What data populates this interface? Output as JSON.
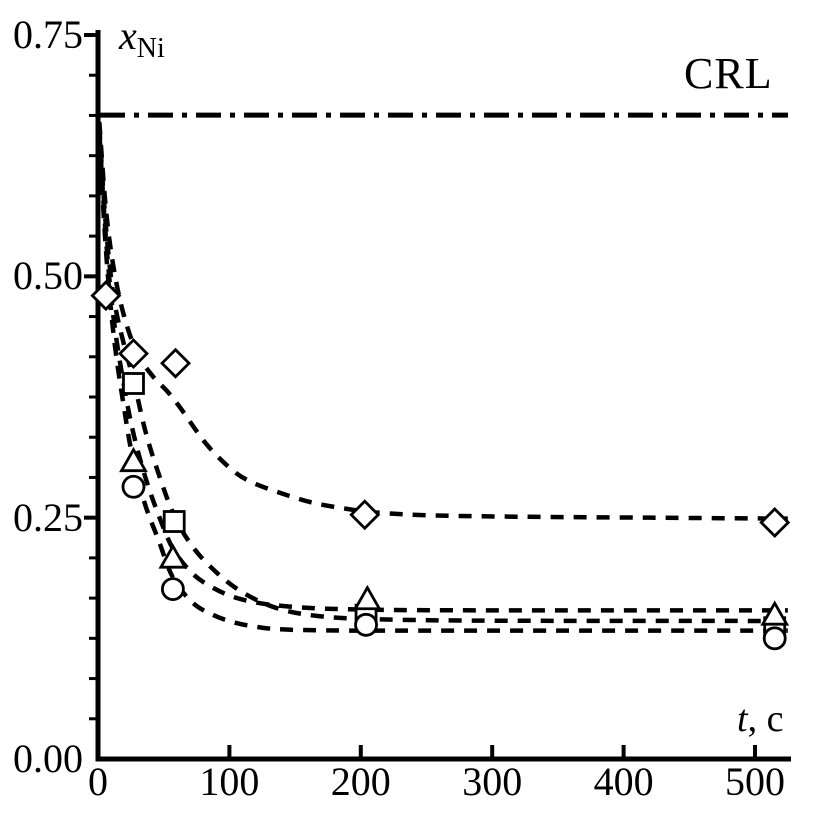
{
  "figure": {
    "background": "#ffffff",
    "ink_color": "#000000"
  },
  "chart_data": {
    "type": "line",
    "title": "",
    "xlabel": {
      "main": "t",
      "unit": ", c"
    },
    "ylabel": {
      "base": "x",
      "sub": "Ni"
    },
    "xlim": [
      0,
      500
    ],
    "ylim": [
      0,
      0.75
    ],
    "x_ticks": [
      0,
      100,
      200,
      300,
      400,
      500
    ],
    "x_tick_labels": [
      "0",
      "100",
      "200",
      "300",
      "400",
      "500"
    ],
    "y_ticks": [
      0,
      0.25,
      0.5,
      0.75
    ],
    "y_tick_labels": [
      "0.00",
      "0.25",
      "0.50",
      "0.75"
    ],
    "y_minor_divisions_per_major": 6,
    "grid": false,
    "legend_position": "none",
    "annotation": {
      "label": "CRL",
      "value": 0.667,
      "line_style": "dash-dot",
      "orientation": "horizontal"
    },
    "series": [
      {
        "name": "diamond-series",
        "marker": "diamond",
        "line_style": "dashed",
        "plateau": 0.25,
        "points": [
          [
            6,
            0.48
          ],
          [
            27,
            0.42
          ],
          [
            59,
            0.41
          ],
          [
            203,
            0.253
          ],
          [
            515,
            0.245
          ]
        ],
        "curve": [
          [
            1,
            0.66
          ],
          [
            6,
            0.57
          ],
          [
            12,
            0.508
          ],
          [
            20,
            0.458
          ],
          [
            30,
            0.42
          ],
          [
            42,
            0.396
          ],
          [
            52,
            0.382
          ],
          [
            62,
            0.365
          ],
          [
            82,
            0.327
          ],
          [
            100,
            0.302
          ],
          [
            115,
            0.288
          ],
          [
            140,
            0.275
          ],
          [
            165,
            0.265
          ],
          [
            190,
            0.259
          ],
          [
            210,
            0.2555
          ],
          [
            250,
            0.2525
          ],
          [
            320,
            0.251
          ],
          [
            420,
            0.25
          ],
          [
            525,
            0.249
          ]
        ]
      },
      {
        "name": "square-series",
        "marker": "square",
        "line_style": "dashed",
        "plateau": 0.143,
        "points": [
          [
            27,
            0.389
          ],
          [
            58,
            0.246
          ],
          [
            204,
            0.149
          ],
          [
            515,
            0.136
          ]
        ],
        "curve": [
          [
            1,
            0.655
          ],
          [
            6,
            0.552
          ],
          [
            12,
            0.478
          ],
          [
            20,
            0.428
          ],
          [
            27,
            0.393
          ],
          [
            36,
            0.34
          ],
          [
            46,
            0.296
          ],
          [
            58,
            0.252
          ],
          [
            72,
            0.22
          ],
          [
            88,
            0.196
          ],
          [
            105,
            0.177
          ],
          [
            125,
            0.162
          ],
          [
            145,
            0.153
          ],
          [
            168,
            0.148
          ],
          [
            195,
            0.1455
          ],
          [
            240,
            0.144
          ],
          [
            320,
            0.1432
          ],
          [
            525,
            0.143
          ]
        ]
      },
      {
        "name": "triangle-series",
        "marker": "triangle",
        "line_style": "dashed",
        "plateau": 0.154,
        "points": [
          [
            27,
            0.308
          ],
          [
            57,
            0.208
          ],
          [
            205,
            0.165
          ],
          [
            515,
            0.149
          ]
        ],
        "curve": [
          [
            1,
            0.65
          ],
          [
            6,
            0.54
          ],
          [
            12,
            0.455
          ],
          [
            20,
            0.385
          ],
          [
            27,
            0.337
          ],
          [
            36,
            0.292
          ],
          [
            46,
            0.253
          ],
          [
            57,
            0.218
          ],
          [
            72,
            0.192
          ],
          [
            88,
            0.177
          ],
          [
            105,
            0.167
          ],
          [
            125,
            0.161
          ],
          [
            145,
            0.158
          ],
          [
            168,
            0.156
          ],
          [
            195,
            0.155
          ],
          [
            240,
            0.1542
          ],
          [
            320,
            0.154
          ],
          [
            525,
            0.154
          ]
        ]
      },
      {
        "name": "circle-series",
        "marker": "circle",
        "line_style": "dashed",
        "plateau": 0.133,
        "points": [
          [
            27,
            0.282
          ],
          [
            57,
            0.176
          ],
          [
            204,
            0.139
          ],
          [
            515,
            0.125
          ]
        ],
        "curve": [
          [
            1,
            0.645
          ],
          [
            6,
            0.528
          ],
          [
            12,
            0.438
          ],
          [
            20,
            0.362
          ],
          [
            27,
            0.308
          ],
          [
            36,
            0.263
          ],
          [
            46,
            0.227
          ],
          [
            57,
            0.188
          ],
          [
            72,
            0.162
          ],
          [
            88,
            0.149
          ],
          [
            105,
            0.141
          ],
          [
            125,
            0.136
          ],
          [
            145,
            0.134
          ],
          [
            168,
            0.1334
          ],
          [
            195,
            0.133
          ],
          [
            240,
            0.133
          ],
          [
            320,
            0.133
          ],
          [
            525,
            0.133
          ]
        ]
      }
    ]
  }
}
